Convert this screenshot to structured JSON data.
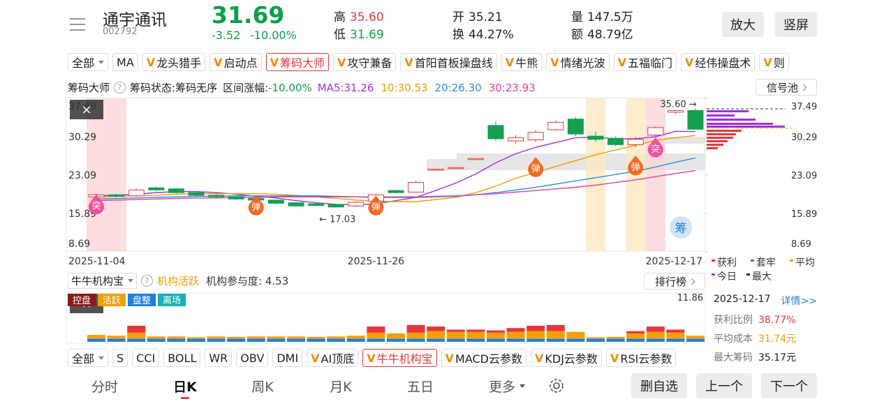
{
  "header": {
    "name": "通宇通讯",
    "code": "002792",
    "price": "31.69",
    "change": "-3.52",
    "change_pct": "-10.00%",
    "stats": [
      {
        "label": "高",
        "value": "35.60"
      },
      {
        "label": "低",
        "value": "31.69"
      },
      {
        "label": "开",
        "value": "35.21"
      },
      {
        "label": "换",
        "value": "44.27%"
      },
      {
        "label": "量",
        "value": "147.5万"
      },
      {
        "label": "额",
        "value": "48.79亿"
      }
    ],
    "buttons": [
      "放大",
      "竖屏"
    ]
  },
  "indicator_tabs": {
    "selected": 4,
    "items": [
      {
        "label": "全部",
        "dropdown": true
      },
      {
        "label": "MA"
      },
      {
        "label": "龙头猎手",
        "badge": "V"
      },
      {
        "label": "启动点",
        "badge": "V"
      },
      {
        "label": "筹码大师",
        "badge": "V"
      },
      {
        "label": "攻守兼备",
        "badge": "V"
      },
      {
        "label": "首阳首板操盘线",
        "badge": "V"
      },
      {
        "label": "牛熊",
        "badge": "V"
      },
      {
        "label": "情绪光波",
        "badge": "V"
      },
      {
        "label": "五福临门",
        "badge": "V"
      },
      {
        "label": "经伟操盘术",
        "badge": "V"
      },
      {
        "label": "则",
        "badge": "V"
      }
    ]
  },
  "help_icon": "?",
  "close_icon": "×",
  "chart_bar": {
    "title": "筹码大师",
    "status": "筹码状态:筹码无序",
    "range_label": "区间涨幅:",
    "range_value": "-10.00%",
    "ma": [
      {
        "label": "MA5:31.26",
        "color": "#a030d8"
      },
      {
        "label": "10:30.53",
        "color": "#e8a000"
      },
      {
        "label": "20:26.30",
        "color": "#2a8ee0"
      },
      {
        "label": "30:23.93",
        "color": "#e040a0"
      }
    ],
    "button": "信号池"
  },
  "chart_data": {
    "type": "candlestick",
    "categories": [
      "2025-11-04",
      null,
      null,
      null,
      null,
      null,
      null,
      null,
      null,
      null,
      null,
      null,
      null,
      null,
      "2025-11-26",
      null,
      null,
      null,
      null,
      null,
      null,
      null,
      null,
      null,
      null,
      null,
      null,
      null,
      null,
      null,
      "2025-12-17"
    ],
    "candles": [
      [
        19.0,
        19.6,
        18.8,
        19.4
      ],
      [
        19.4,
        19.6,
        18.9,
        19.1
      ],
      [
        19.2,
        20.6,
        19.0,
        20.3
      ],
      [
        20.7,
        20.9,
        20.1,
        20.3
      ],
      [
        20.5,
        20.7,
        19.6,
        19.8
      ],
      [
        19.8,
        19.9,
        19.0,
        19.3
      ],
      [
        19.3,
        19.5,
        18.8,
        19.0
      ],
      [
        19.0,
        19.2,
        18.4,
        18.6
      ],
      [
        18.7,
        18.9,
        18.2,
        18.4
      ],
      [
        18.4,
        18.5,
        17.6,
        17.8
      ],
      [
        17.9,
        18.0,
        17.1,
        17.3
      ],
      [
        17.7,
        17.9,
        17.2,
        17.4
      ],
      [
        17.6,
        17.7,
        17.03,
        17.1
      ],
      [
        17.3,
        18.2,
        17.1,
        18.0
      ],
      [
        18.2,
        19.6,
        17.9,
        19.4
      ],
      [
        20.2,
        20.3,
        19.6,
        19.8
      ],
      [
        19.9,
        22.0,
        19.8,
        21.7
      ],
      [
        24.0,
        24.3,
        23.9,
        24.2
      ],
      [
        24.4,
        24.6,
        24.3,
        24.5
      ],
      [
        26.0,
        26.3,
        25.9,
        26.2
      ],
      [
        32.4,
        33.2,
        29.5,
        29.9
      ],
      [
        29.5,
        30.6,
        29.0,
        30.1
      ],
      [
        29.7,
        31.5,
        29.3,
        31.1
      ],
      [
        31.6,
        33.3,
        31.4,
        33.0
      ],
      [
        33.6,
        34.0,
        30.4,
        30.8
      ],
      [
        30.4,
        31.2,
        29.3,
        29.8
      ],
      [
        30.0,
        30.3,
        28.5,
        28.8
      ],
      [
        28.8,
        30.3,
        28.3,
        29.8
      ],
      [
        30.6,
        32.2,
        30.4,
        32.0
      ],
      [
        34.9,
        35.3,
        34.6,
        35.21
      ],
      [
        35.21,
        35.6,
        31.69,
        31.69
      ]
    ],
    "up_color": "#e8363a",
    "down_color": "#14a050",
    "ma_series": [
      {
        "color": "#a030d8",
        "values": [
          19.2,
          19.3,
          19.5,
          19.8,
          20.0,
          20.0,
          19.8,
          19.5,
          19.1,
          18.8,
          18.3,
          17.9,
          17.6,
          17.5,
          17.7,
          18.3,
          18.9,
          20.2,
          21.6,
          23.3,
          25.4,
          27.1,
          28.3,
          29.2,
          30.1,
          30.2,
          29.9,
          29.9,
          30.3,
          31.3,
          31.26
        ]
      },
      {
        "color": "#e8a000",
        "values": [
          19.0,
          19.1,
          19.2,
          19.3,
          19.5,
          19.6,
          19.6,
          19.6,
          19.6,
          19.5,
          19.3,
          19.0,
          18.7,
          18.4,
          18.2,
          18.1,
          18.1,
          18.5,
          18.9,
          19.8,
          21.0,
          22.5,
          23.6,
          24.7,
          25.8,
          26.9,
          27.8,
          28.7,
          29.6,
          30.1,
          30.53
        ]
      },
      {
        "color": "#2a8ee0",
        "values": [
          18.6,
          18.7,
          18.8,
          18.9,
          19.0,
          19.1,
          19.1,
          19.2,
          19.2,
          19.2,
          19.2,
          19.2,
          19.1,
          19.0,
          18.9,
          18.9,
          18.9,
          19.0,
          19.1,
          19.4,
          19.8,
          20.3,
          20.8,
          21.4,
          22.0,
          22.6,
          23.2,
          23.8,
          24.6,
          25.5,
          26.3
        ]
      },
      {
        "color": "#e040a0",
        "values": [
          18.3,
          18.4,
          18.5,
          18.6,
          18.7,
          18.8,
          18.8,
          18.9,
          18.9,
          19.0,
          19.0,
          19.0,
          19.0,
          19.0,
          19.0,
          19.0,
          19.0,
          19.1,
          19.2,
          19.4,
          19.6,
          19.9,
          20.2,
          20.5,
          20.8,
          21.2,
          21.7,
          22.2,
          22.8,
          23.4,
          23.93
        ]
      }
    ],
    "ylim": [
      8.69,
      37.49
    ],
    "yticks": [
      37.49,
      30.29,
      23.09,
      15.89,
      8.69
    ],
    "high_label": "35.60 →",
    "low_label": "← 17.03",
    "signals": [
      {
        "label": "突",
        "index": 0,
        "value": 17.5,
        "color": "#f0509a"
      },
      {
        "label": "弹",
        "index": 8,
        "value": 17.3,
        "color": "#f06a28"
      },
      {
        "label": "弹",
        "index": 14,
        "value": 17.3,
        "color": "#f06a28"
      },
      {
        "label": "弹",
        "index": 22,
        "value": 24.5,
        "color": "#f06a28"
      },
      {
        "label": "弹",
        "index": 27,
        "value": 24.8,
        "color": "#f06a28"
      },
      {
        "label": "突",
        "index": 28,
        "value": 28.2,
        "color": "#f0509a"
      }
    ],
    "chip_badge": "筹",
    "chip_legend": [
      {
        "label": "获利",
        "color": "#e8363a"
      },
      {
        "label": "套牢",
        "color": "#14a050"
      },
      {
        "label": "平均",
        "color": "#e8a000"
      },
      {
        "label": "今日",
        "color": "#a030d8"
      },
      {
        "label": "最大",
        "color": "#333"
      }
    ]
  },
  "lower_chart": {
    "type": "stacked-bar",
    "title": "牛牛机构宝",
    "status": "机构活跃",
    "participation": "机构参与度: 4.53",
    "button": "排行榜",
    "legend": [
      {
        "label": "控盘",
        "color": "#8b1a1a"
      },
      {
        "label": "活跃",
        "color": "#f0a000"
      },
      {
        "label": "盘整",
        "color": "#1e7fe0"
      },
      {
        "label": "离场",
        "color": "#18b0b8"
      }
    ],
    "ylim": [
      0,
      11.86
    ],
    "yticks": [
      11.86
    ],
    "series": [
      {
        "color": "#1e7fe0",
        "values": [
          0.8,
          0.8,
          0.8,
          0.8,
          0.8,
          0.8,
          0.8,
          0.8,
          0.8,
          0.8,
          0.8,
          0.8,
          0.8,
          0.8,
          0.8,
          0.8,
          0.8,
          0.8,
          0.8,
          0.8,
          0.8,
          0.8,
          0.8,
          0.8,
          0.8,
          0.8,
          0.8,
          0.8,
          0.8,
          0.8,
          0.8
        ]
      },
      {
        "color": "#f0a000",
        "values": [
          1.0,
          0.8,
          1.6,
          0.6,
          0.6,
          0.4,
          0.6,
          0.5,
          0.6,
          0.6,
          0.6,
          0.5,
          0.6,
          0.8,
          1.6,
          1.4,
          1.6,
          2.0,
          1.8,
          1.8,
          1.6,
          1.8,
          2.0,
          2.0,
          1.8,
          0.4,
          0.5,
          1.4,
          1.8,
          1.6,
          0.8
        ]
      },
      {
        "color": "#e8353a",
        "values": [
          0,
          0,
          1.8,
          0,
          0,
          0,
          0,
          0,
          0,
          0,
          0,
          0,
          0,
          0,
          1.6,
          0,
          2.0,
          1.2,
          0.6,
          0.6,
          0.6,
          1.0,
          1.4,
          1.6,
          0,
          0,
          0,
          0.6,
          1.4,
          0.8,
          0
        ]
      }
    ]
  },
  "chip_info": {
    "date": "2025-12-17",
    "details": "详情>>",
    "rows": [
      {
        "label": "获利比例",
        "value": "38.77%",
        "color": "#e8363a"
      },
      {
        "label": "平均成本",
        "value": "31.74元",
        "color": "#e8a000"
      },
      {
        "label": "最大筹码",
        "value": "35.17元",
        "color": "#222"
      }
    ]
  },
  "lower_tabs": {
    "selected": 8,
    "items": [
      {
        "label": "全部",
        "dropdown": true
      },
      {
        "label": "S"
      },
      {
        "label": "CCI"
      },
      {
        "label": "BOLL"
      },
      {
        "label": "WR"
      },
      {
        "label": "OBV"
      },
      {
        "label": "DMI"
      },
      {
        "label": "AI顶底",
        "badge": "V"
      },
      {
        "label": "牛牛机构宝",
        "badge": "V"
      },
      {
        "label": "MACD云参数",
        "badge": "V"
      },
      {
        "label": "KDJ云参数",
        "badge": "V"
      },
      {
        "label": "RSI云参数",
        "badge": "V"
      }
    ]
  },
  "nav": {
    "selected": 1,
    "tabs": [
      "分时",
      "日K",
      "周K",
      "月K",
      "五日"
    ],
    "more": "更多",
    "buttons": [
      "删自选",
      "上一个",
      "下一个"
    ]
  }
}
